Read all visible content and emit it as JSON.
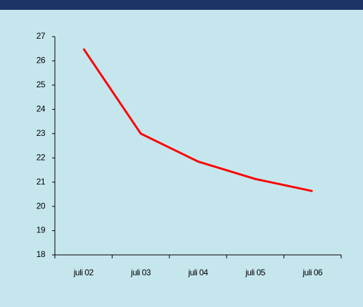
{
  "chart_data": {
    "type": "line",
    "categories": [
      "juli 02",
      "juli 03",
      "juli 04",
      "juli 05",
      "juli 06"
    ],
    "values": [
      26.5,
      23.0,
      21.85,
      21.13,
      20.63
    ],
    "color": "#ff0000",
    "ylim": [
      18,
      27
    ],
    "yticks": [
      18,
      19,
      20,
      21,
      22,
      23,
      24,
      25,
      26,
      27
    ],
    "grid": false
  }
}
